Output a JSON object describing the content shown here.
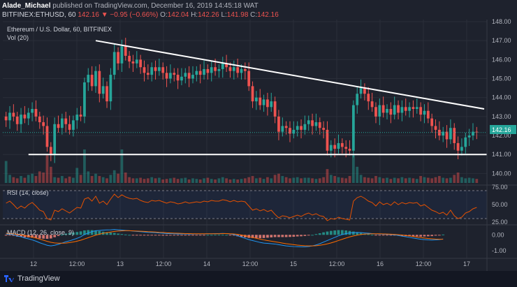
{
  "header": {
    "line1_author": "Alade_Michael",
    "line1_rest": " published on TradingView.com, December 16, 2019 14:45:18 WAT",
    "symbol": "BITFINEX:ETHUSD, 60",
    "close_now": "142.16",
    "change": "▼ −0.95 (−0.66%)",
    "o_label": "O:",
    "o_value": "142.04",
    "h_label": "H:",
    "h_value": "142.26",
    "l_label": "L:",
    "l_value": "141.98",
    "c_label": "C:",
    "c_value": "142.16"
  },
  "main_pane": {
    "title": "Ethereum / U.S. Dollar, 60, BITFINEX",
    "vol_label": "Vol (20)",
    "price_tag": "142.16"
  },
  "rsi_pane": {
    "title": "RSI (14, close)"
  },
  "macd_pane": {
    "title": "MACD (12, 26, close, 9)"
  },
  "footer": {
    "brand": "TradingView"
  },
  "colors": {
    "up": "#26a69a",
    "down": "#ef5350",
    "background": "#1e222d",
    "rsi_line": "#e65100",
    "macd_line": "#2196f3",
    "signal_line": "#ff6d00"
  },
  "chart_data": [
    {
      "type": "candlestick",
      "title": "Ethereum / U.S. Dollar, 60, BITFINEX",
      "x_tick_labels": [
        "12",
        "12:00",
        "13",
        "12:00",
        "14",
        "12:00",
        "15",
        "12:00",
        "16",
        "12:00",
        "17"
      ],
      "y_tick_labels": [
        "148.00",
        "147.00",
        "146.00",
        "145.00",
        "144.00",
        "143.00",
        "142.00",
        "141.00",
        "140.00"
      ],
      "ylim": [
        139.5,
        148.0
      ],
      "grid": true,
      "close": [
        142.8,
        143.2,
        143.0,
        142.6,
        143.1,
        142.9,
        143.2,
        143.4,
        143.0,
        142.7,
        142.5,
        141.4,
        141.0,
        142.6,
        142.4,
        142.9,
        142.6,
        142.3,
        142.8,
        143.1,
        143.0,
        144.8,
        145.2,
        144.6,
        145.4,
        144.2,
        144.6,
        143.8,
        145.2,
        146.4,
        145.8,
        146.7,
        146.2,
        145.9,
        145.8,
        146.0,
        145.6,
        145.3,
        145.2,
        145.6,
        145.4,
        145.6,
        145.3,
        145.0,
        145.3,
        145.2,
        144.9,
        145.1,
        145.3,
        145.0,
        145.2,
        145.4,
        145.2,
        145.5,
        145.3,
        145.6,
        145.4,
        145.5,
        145.8,
        145.6,
        145.4,
        145.6,
        145.3,
        145.5,
        145.4,
        144.6,
        143.8,
        144.0,
        143.6,
        143.9,
        143.5,
        143.8,
        143.0,
        142.2,
        142.5,
        142.4,
        142.1,
        142.3,
        142.5,
        142.3,
        142.6,
        142.8,
        142.5,
        142.7,
        142.4,
        142.3,
        141.2,
        141.5,
        141.3,
        141.6,
        141.4,
        141.3,
        141.2,
        143.6,
        144.2,
        144.5,
        144.2,
        143.8,
        143.5,
        143.0,
        143.6,
        143.2,
        143.4,
        143.1,
        143.6,
        143.2,
        143.5,
        143.3,
        143.5,
        143.4,
        143.5,
        143.1,
        143.3,
        142.9,
        142.5,
        142.3,
        142.0,
        142.2,
        141.8,
        142.4,
        141.6,
        141.2,
        141.4,
        141.9,
        142.0,
        142.2,
        142.16
      ],
      "horizontal_support": 141.0,
      "descending_trendline": [
        [
          24,
          147.0
        ],
        [
          128,
          143.4
        ]
      ]
    },
    {
      "type": "bar",
      "title": "Vol (20)",
      "values": [
        38,
        14,
        10,
        8,
        12,
        9,
        14,
        16,
        12,
        20,
        18,
        48,
        28,
        10,
        9,
        12,
        8,
        11,
        9,
        26,
        14,
        58,
        20,
        12,
        16,
        12,
        10,
        8,
        14,
        22,
        16,
        58,
        18,
        10,
        8,
        8,
        9,
        7,
        8,
        10,
        8,
        9,
        6,
        7,
        8,
        9,
        7,
        8,
        9,
        6,
        8,
        7,
        6,
        8,
        9,
        7,
        6,
        8,
        10,
        8,
        6,
        7,
        6,
        7,
        8,
        10,
        12,
        8,
        9,
        7,
        10,
        8,
        14,
        16,
        12,
        10,
        8,
        9,
        10,
        8,
        9,
        9,
        8,
        7,
        8,
        10,
        24,
        14,
        12,
        10,
        9,
        8,
        12,
        48,
        28,
        14,
        10,
        9,
        8,
        12,
        10,
        8,
        9,
        7,
        9,
        8,
        10,
        8,
        9,
        8,
        7,
        12,
        10,
        9,
        8,
        10,
        12,
        9,
        8,
        9,
        14,
        18,
        10,
        8,
        9,
        8,
        7
      ]
    },
    {
      "type": "line",
      "title": "RSI (14, close)",
      "y_tick_labels": [
        "75.00",
        "50.00",
        "25.00"
      ],
      "ylim": [
        25,
        75
      ],
      "bands": [
        70,
        30
      ],
      "series": [
        {
          "values": [
            52,
            55,
            50,
            44,
            48,
            45,
            50,
            53,
            48,
            42,
            40,
            30,
            28,
            42,
            40,
            44,
            41,
            38,
            42,
            46,
            45,
            58,
            60,
            55,
            62,
            52,
            55,
            50,
            58,
            65,
            60,
            64,
            61,
            59,
            58,
            59,
            56,
            54,
            53,
            56,
            55,
            56,
            54,
            52,
            54,
            53,
            51,
            52,
            54,
            52,
            53,
            54,
            53,
            55,
            54,
            56,
            55,
            55,
            57,
            56,
            54,
            56,
            54,
            55,
            54,
            48,
            42,
            44,
            41,
            43,
            40,
            42,
            36,
            31,
            34,
            33,
            31,
            33,
            35,
            33,
            36,
            38,
            35,
            37,
            34,
            33,
            27,
            30,
            29,
            32,
            30,
            29,
            28,
            55,
            60,
            62,
            59,
            55,
            53,
            48,
            54,
            50,
            52,
            49,
            54,
            50,
            53,
            51,
            53,
            52,
            53,
            48,
            50,
            46,
            42,
            40,
            37,
            39,
            35,
            42,
            34,
            30,
            32,
            38,
            40,
            44,
            46
          ]
        }
      ]
    },
    {
      "type": "line",
      "title": "MACD (12, 26, close, 9)",
      "y_tick_labels": [
        "0.00",
        "-1.00"
      ],
      "ylim": [
        -1.4,
        0.5
      ],
      "series": [
        {
          "name": "MACD",
          "values": [
            0.05,
            0.04,
            0.0,
            -0.08,
            -0.12,
            -0.2,
            -0.25,
            -0.32,
            -0.4,
            -0.5,
            -0.58,
            -0.66,
            -0.7,
            -0.66,
            -0.6,
            -0.52,
            -0.44,
            -0.38,
            -0.3,
            -0.22,
            -0.12,
            0.02,
            0.12,
            0.2,
            0.26,
            0.28,
            0.3,
            0.31,
            0.32,
            0.34,
            0.32,
            0.3,
            0.28,
            0.26,
            0.24,
            0.22,
            0.2,
            0.18,
            0.16,
            0.15,
            0.14,
            0.12,
            0.1,
            0.08,
            0.08,
            0.07,
            0.06,
            0.06,
            0.06,
            0.05,
            0.05,
            0.06,
            0.06,
            0.06,
            0.07,
            0.07,
            0.08,
            0.08,
            0.09,
            0.08,
            0.06,
            0.02,
            -0.06,
            -0.14,
            -0.22,
            -0.3,
            -0.36,
            -0.42,
            -0.48,
            -0.52,
            -0.54,
            -0.56,
            -0.58,
            -0.62,
            -0.66,
            -0.7,
            -0.72,
            -0.74,
            -0.75,
            -0.76,
            -0.76,
            -0.74,
            -0.7,
            -0.64,
            -0.56,
            -0.46,
            -0.36,
            -0.26,
            -0.16,
            -0.06,
            0.02,
            0.08,
            0.12,
            0.14,
            0.15,
            0.14,
            0.12,
            0.1,
            0.08,
            0.06,
            0.05,
            0.04,
            0.03,
            0.02,
            0.0,
            -0.04,
            -0.08,
            -0.12,
            -0.16,
            -0.2,
            -0.24,
            -0.28,
            -0.3,
            -0.32,
            -0.33,
            -0.32,
            -0.3,
            -0.26
          ]
        },
        {
          "name": "Signal",
          "values": [
            0.1,
            0.08,
            0.06,
            0.03,
            0.0,
            -0.04,
            -0.09,
            -0.14,
            -0.2,
            -0.27,
            -0.34,
            -0.41,
            -0.47,
            -0.51,
            -0.53,
            -0.53,
            -0.52,
            -0.49,
            -0.45,
            -0.4,
            -0.34,
            -0.26,
            -0.18,
            -0.1,
            -0.02,
            0.04,
            0.1,
            0.14,
            0.18,
            0.22,
            0.24,
            0.25,
            0.26,
            0.26,
            0.25,
            0.24,
            0.23,
            0.22,
            0.2,
            0.19,
            0.18,
            0.16,
            0.15,
            0.13,
            0.12,
            0.11,
            0.1,
            0.09,
            0.08,
            0.08,
            0.07,
            0.07,
            0.07,
            0.07,
            0.07,
            0.07,
            0.07,
            0.07,
            0.08,
            0.08,
            0.07,
            0.06,
            0.03,
            -0.01,
            -0.06,
            -0.11,
            -0.16,
            -0.22,
            -0.27,
            -0.32,
            -0.36,
            -0.4,
            -0.44,
            -0.48,
            -0.52,
            -0.56,
            -0.59,
            -0.62,
            -0.65,
            -0.67,
            -0.69,
            -0.7,
            -0.7,
            -0.69,
            -0.66,
            -0.62,
            -0.57,
            -0.51,
            -0.44,
            -0.36,
            -0.28,
            -0.2,
            -0.13,
            -0.07,
            -0.02,
            0.02,
            0.05,
            0.06,
            0.07,
            0.07,
            0.07,
            0.06,
            0.05,
            0.04,
            0.03,
            0.01,
            -0.01,
            -0.04,
            -0.07,
            -0.1,
            -0.14,
            -0.17,
            -0.2,
            -0.23,
            -0.25,
            -0.27,
            -0.28,
            -0.28
          ]
        }
      ]
    }
  ]
}
